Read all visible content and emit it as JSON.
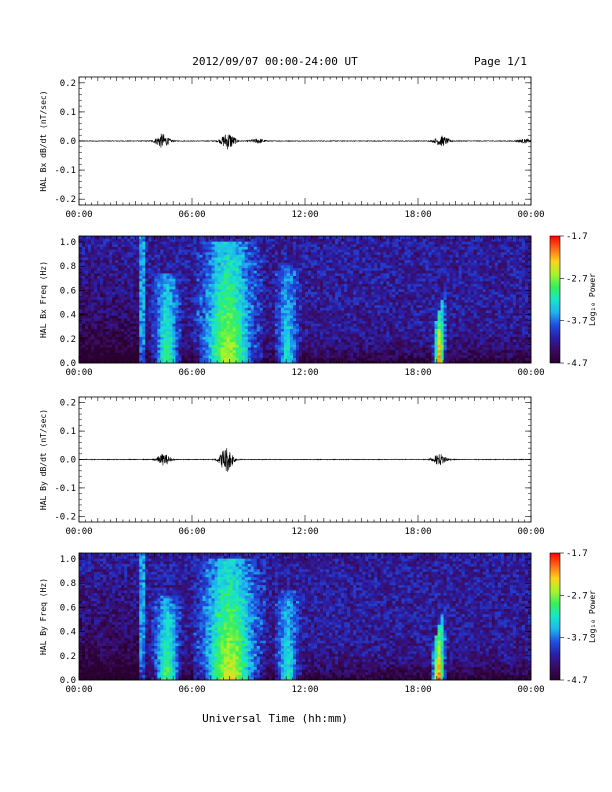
{
  "header": {
    "title": "2012/09/07  00:00-24:00 UT",
    "page": "Page 1/1"
  },
  "colors": {
    "colormap": [
      "#2a0030",
      "#3a0a5e",
      "#2a1ea8",
      "#1f4fe0",
      "#1fb4f0",
      "#18e6c8",
      "#37ef5a",
      "#a6f52d",
      "#ffd21a",
      "#ff6a1a",
      "#ff0000"
    ]
  },
  "chart_data": [
    {
      "type": "line",
      "ylabel": "HAL Bx dB/dt (nT/sec)",
      "ylim": [
        -0.22,
        0.22
      ],
      "yticks": [
        "0.2",
        "0.1",
        "0.0",
        "-0.1",
        "-0.2"
      ],
      "ytick_values": [
        0.2,
        0.1,
        0.0,
        -0.1,
        -0.2
      ],
      "xlim": [
        "00:00",
        "24:00"
      ],
      "xticks": [
        "00:00",
        "06:00",
        "12:00",
        "18:00",
        "00:00"
      ],
      "bursts": [
        {
          "t": "04:25",
          "amp": 0.025
        },
        {
          "t": "07:55",
          "amp": 0.03
        },
        {
          "t": "09:30",
          "amp": 0.008
        },
        {
          "t": "19:15",
          "amp": 0.018
        },
        {
          "t": "23:40",
          "amp": 0.006
        }
      ]
    },
    {
      "type": "heatmap",
      "ylabel": "HAL Bx Freq (Hz)",
      "ylim": [
        0.0,
        1.05
      ],
      "yticks": [
        "1.0",
        "0.8",
        "0.6",
        "0.4",
        "0.2",
        "0.0"
      ],
      "ytick_values": [
        1.0,
        0.8,
        0.6,
        0.4,
        0.2,
        0.0
      ],
      "xlim": [
        "00:00",
        "24:00"
      ],
      "xticks": [
        "00:00",
        "06:00",
        "12:00",
        "18:00",
        "00:00"
      ],
      "colorbar": {
        "label": "Log₁₀ Power",
        "ticks": [
          "-1.7",
          "-2.7",
          "-3.7",
          "-4.7"
        ],
        "tick_values": [
          -1.7,
          -2.7,
          -3.7,
          -4.7
        ],
        "range": [
          -4.7,
          -1.7
        ]
      },
      "features": [
        {
          "t_start": "04:00",
          "t_end": "05:20",
          "f_max": 0.75,
          "peak": -2.9
        },
        {
          "t_start": "06:30",
          "t_end": "09:20",
          "f_max": 1.0,
          "peak": -2.5
        },
        {
          "t_start": "10:30",
          "t_end": "11:40",
          "f_max": 0.8,
          "peak": -3.2
        },
        {
          "t_start": "18:50",
          "t_end": "19:25",
          "f_max": 0.55,
          "peak": -1.9
        }
      ]
    },
    {
      "type": "line",
      "ylabel": "HAL By dB/dt (nT/sec)",
      "ylim": [
        -0.22,
        0.22
      ],
      "yticks": [
        "0.2",
        "0.1",
        "0.0",
        "-0.1",
        "-0.2"
      ],
      "ytick_values": [
        0.2,
        0.1,
        0.0,
        -0.1,
        -0.2
      ],
      "xlim": [
        "00:00",
        "24:00"
      ],
      "xticks": [
        "00:00",
        "06:00",
        "12:00",
        "18:00",
        "00:00"
      ],
      "bursts": [
        {
          "t": "04:30",
          "amp": 0.02
        },
        {
          "t": "07:50",
          "amp": 0.045
        },
        {
          "t": "19:10",
          "amp": 0.02
        }
      ]
    },
    {
      "type": "heatmap",
      "ylabel": "HAL By Freq (Hz)",
      "ylim": [
        0.0,
        1.05
      ],
      "yticks": [
        "1.0",
        "0.8",
        "0.6",
        "0.4",
        "0.2",
        "0.0"
      ],
      "ytick_values": [
        1.0,
        0.8,
        0.6,
        0.4,
        0.2,
        0.0
      ],
      "xlim": [
        "00:00",
        "24:00"
      ],
      "xticks": [
        "00:00",
        "06:00",
        "12:00",
        "18:00",
        "00:00"
      ],
      "xlabel": "Universal Time (hh:mm)",
      "colorbar": {
        "label": "Log₁₀ Power",
        "ticks": [
          "-1.7",
          "-2.7",
          "-3.7",
          "-4.7"
        ],
        "tick_values": [
          -1.7,
          -2.7,
          -3.7,
          -4.7
        ],
        "range": [
          -4.7,
          -1.7
        ]
      },
      "features": [
        {
          "t_start": "04:00",
          "t_end": "05:20",
          "f_max": 0.7,
          "peak": -2.8
        },
        {
          "t_start": "06:30",
          "t_end": "09:30",
          "f_max": 1.0,
          "peak": -2.4
        },
        {
          "t_start": "10:30",
          "t_end": "11:40",
          "f_max": 0.75,
          "peak": -3.1
        },
        {
          "t_start": "18:45",
          "t_end": "19:25",
          "f_max": 0.55,
          "peak": -1.9
        }
      ]
    }
  ]
}
